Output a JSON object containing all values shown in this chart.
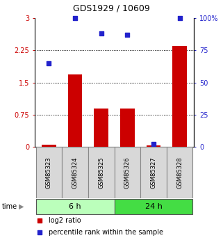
{
  "title": "GDS1929 / 10609",
  "samples": [
    "GSM85323",
    "GSM85324",
    "GSM85325",
    "GSM85326",
    "GSM85327",
    "GSM85328"
  ],
  "log2_ratio": [
    0.05,
    1.68,
    0.9,
    0.9,
    0.04,
    2.35
  ],
  "percentile_rank": [
    65,
    100,
    88,
    87,
    2,
    100
  ],
  "bar_color": "#cc0000",
  "dot_color": "#2222cc",
  "left_ylim": [
    0,
    3
  ],
  "right_ylim": [
    0,
    100
  ],
  "left_yticks": [
    0,
    0.75,
    1.5,
    2.25,
    3
  ],
  "right_yticks": [
    0,
    25,
    50,
    75,
    100
  ],
  "left_yticklabels": [
    "0",
    "0.75",
    "1.5",
    "2.25",
    "3"
  ],
  "right_yticklabels": [
    "0",
    "25",
    "50",
    "75",
    "100%"
  ],
  "grid_yticks": [
    0.75,
    1.5,
    2.25
  ],
  "group_6h_label": "6 h",
  "group_24h_label": "24 h",
  "group_6h_color": "#bbffbb",
  "group_24h_color": "#44dd44",
  "legend_items": [
    {
      "label": "log2 ratio",
      "color": "#cc0000"
    },
    {
      "label": "percentile rank within the sample",
      "color": "#2222cc"
    }
  ],
  "time_label": "time",
  "background_color": "#ffffff",
  "title_fontsize": 9,
  "tick_fontsize": 7,
  "sample_fontsize": 6,
  "group_fontsize": 8,
  "legend_fontsize": 7
}
